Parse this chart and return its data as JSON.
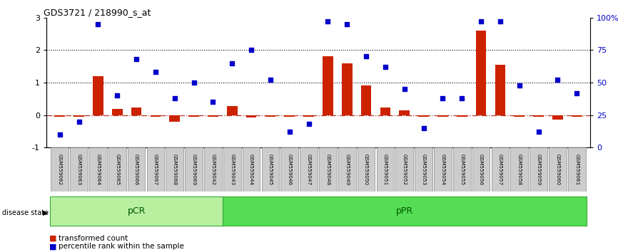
{
  "title": "GDS3721 / 218990_s_at",
  "samples": [
    "GSM559062",
    "GSM559063",
    "GSM559064",
    "GSM559065",
    "GSM559066",
    "GSM559067",
    "GSM559068",
    "GSM559069",
    "GSM559042",
    "GSM559043",
    "GSM559044",
    "GSM559045",
    "GSM559046",
    "GSM559047",
    "GSM559048",
    "GSM559049",
    "GSM559050",
    "GSM559051",
    "GSM559052",
    "GSM559053",
    "GSM559054",
    "GSM559055",
    "GSM559056",
    "GSM559057",
    "GSM559058",
    "GSM559059",
    "GSM559060",
    "GSM559061"
  ],
  "transformed_count": [
    -0.05,
    -0.05,
    1.2,
    0.18,
    0.22,
    -0.05,
    -0.2,
    -0.05,
    -0.05,
    0.28,
    -0.07,
    -0.05,
    -0.05,
    -0.05,
    1.82,
    1.6,
    0.9,
    0.22,
    0.15,
    -0.05,
    -0.05,
    -0.05,
    2.6,
    1.55,
    -0.05,
    -0.05,
    -0.15,
    -0.05
  ],
  "percentile_rank": [
    10,
    20,
    95,
    40,
    68,
    58,
    38,
    50,
    35,
    65,
    75,
    52,
    12,
    18,
    97,
    95,
    70,
    62,
    45,
    15,
    38,
    38,
    97,
    97,
    48,
    12,
    52,
    42
  ],
  "pCR_count": 9,
  "pPR_count": 19,
  "bar_color": "#cc2200",
  "dot_color": "#0000cc",
  "zero_line_color": "#aa1100",
  "dotted_lines": [
    1,
    2
  ],
  "pCR_color": "#b8f0a0",
  "pPR_color": "#55dd55",
  "label_bg": "#cccccc",
  "label_border": "#888888",
  "label_color": "#005500"
}
